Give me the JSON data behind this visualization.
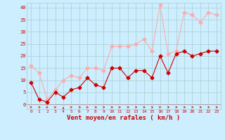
{
  "x": [
    0,
    1,
    2,
    3,
    4,
    5,
    6,
    7,
    8,
    9,
    10,
    11,
    12,
    13,
    14,
    15,
    16,
    17,
    18,
    19,
    20,
    21,
    22,
    23
  ],
  "wind_mean": [
    9,
    2,
    1,
    5,
    3,
    6,
    7,
    11,
    8,
    7,
    15,
    15,
    11,
    14,
    14,
    11,
    20,
    13,
    21,
    22,
    20,
    21,
    22,
    22
  ],
  "wind_gust": [
    16,
    13,
    2,
    6,
    10,
    12,
    11,
    15,
    15,
    14,
    24,
    24,
    24,
    25,
    27,
    22,
    41,
    21,
    22,
    38,
    37,
    34,
    38,
    37
  ],
  "mean_color": "#cc0000",
  "gust_color": "#ffaaaa",
  "bg_color": "#cceeff",
  "grid_color": "#aacccc",
  "xlabel": "Vent moyen/en rafales ( km/h )",
  "xlabel_color": "#cc0000",
  "ylim": [
    -2,
    42
  ],
  "yticks": [
    0,
    5,
    10,
    15,
    20,
    25,
    30,
    35,
    40
  ],
  "markersize": 2.5
}
